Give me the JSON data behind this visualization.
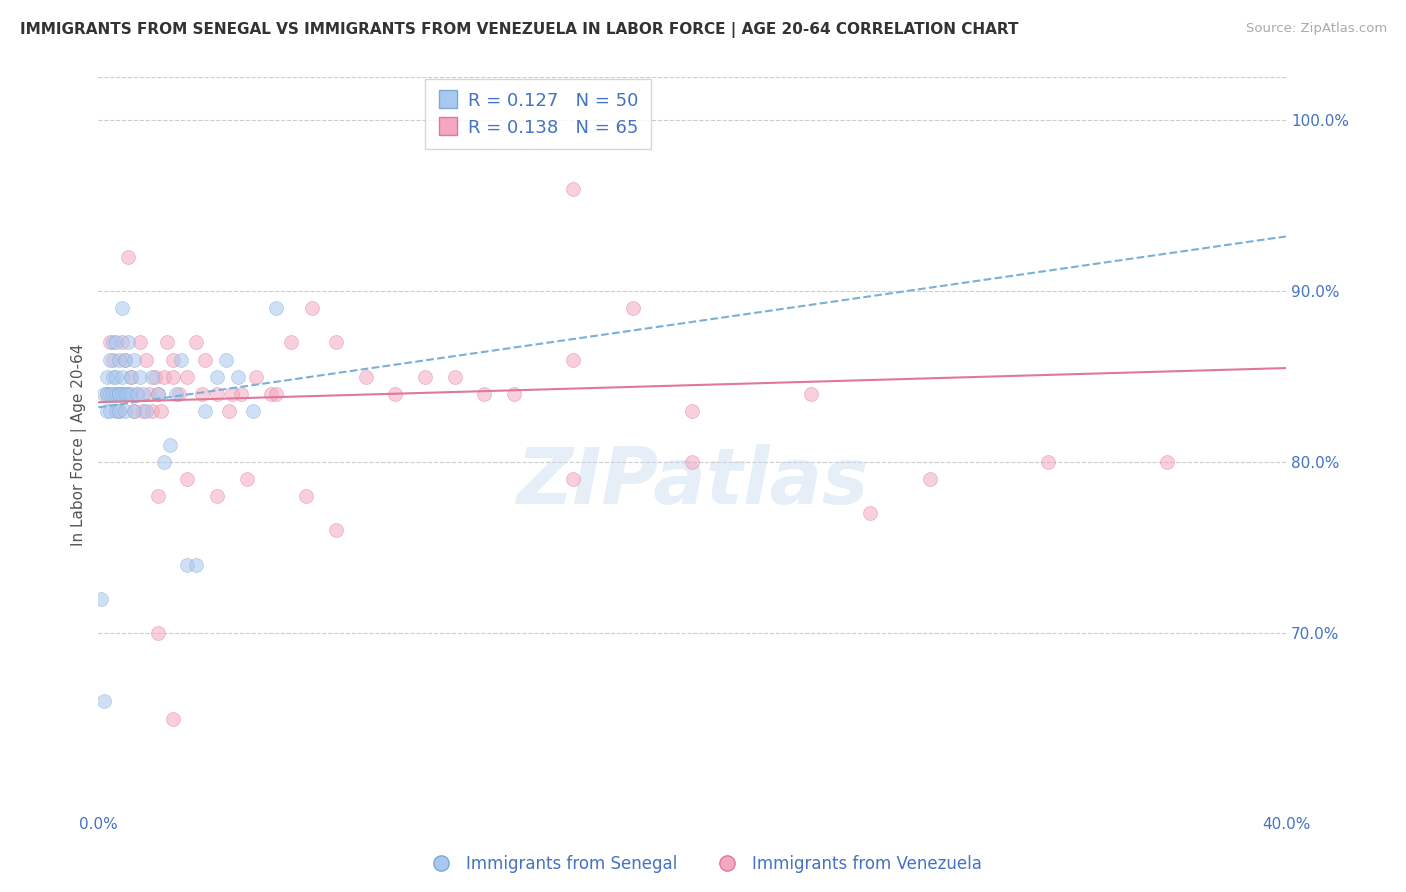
{
  "title": "IMMIGRANTS FROM SENEGAL VS IMMIGRANTS FROM VENEZUELA IN LABOR FORCE | AGE 20-64 CORRELATION CHART",
  "source": "Source: ZipAtlas.com",
  "ylabel": "In Labor Force | Age 20-64",
  "xlim": [
    0.0,
    0.4
  ],
  "ylim": [
    0.595,
    1.025
  ],
  "yticks_right": [
    0.7,
    0.8,
    0.9,
    1.0
  ],
  "ytick_labels_right": [
    "70.0%",
    "80.0%",
    "90.0%",
    "100.0%"
  ],
  "xticks": [
    0.0,
    0.05,
    0.1,
    0.15,
    0.2,
    0.25,
    0.3,
    0.35,
    0.4
  ],
  "xtick_labels": [
    "0.0%",
    "",
    "",
    "",
    "",
    "",
    "",
    "",
    "40.0%"
  ],
  "legend_entries": [
    {
      "label": "Immigrants from Senegal",
      "R": "0.127",
      "N": "50"
    },
    {
      "label": "Immigrants from Venezuela",
      "R": "0.138",
      "N": "65"
    }
  ],
  "watermark": "ZIPatlas",
  "background_color": "#ffffff",
  "grid_color": "#cccccc",
  "axis_color": "#4472c4",
  "senegal_x": [
    0.001,
    0.002,
    0.002,
    0.003,
    0.003,
    0.003,
    0.004,
    0.004,
    0.004,
    0.005,
    0.005,
    0.005,
    0.006,
    0.006,
    0.006,
    0.006,
    0.007,
    0.007,
    0.007,
    0.007,
    0.008,
    0.008,
    0.008,
    0.009,
    0.009,
    0.009,
    0.01,
    0.01,
    0.011,
    0.011,
    0.012,
    0.012,
    0.013,
    0.014,
    0.015,
    0.016,
    0.018,
    0.02,
    0.022,
    0.024,
    0.026,
    0.028,
    0.03,
    0.033,
    0.036,
    0.04,
    0.043,
    0.047,
    0.052,
    0.06
  ],
  "senegal_y": [
    0.72,
    0.84,
    0.66,
    0.84,
    0.83,
    0.85,
    0.86,
    0.84,
    0.83,
    0.85,
    0.84,
    0.87,
    0.85,
    0.84,
    0.83,
    0.87,
    0.84,
    0.86,
    0.84,
    0.83,
    0.89,
    0.84,
    0.85,
    0.86,
    0.84,
    0.83,
    0.84,
    0.87,
    0.84,
    0.85,
    0.86,
    0.83,
    0.84,
    0.85,
    0.84,
    0.83,
    0.85,
    0.84,
    0.8,
    0.81,
    0.84,
    0.86,
    0.74,
    0.74,
    0.83,
    0.85,
    0.86,
    0.85,
    0.83,
    0.89
  ],
  "venezuela_x": [
    0.003,
    0.004,
    0.005,
    0.006,
    0.007,
    0.008,
    0.008,
    0.009,
    0.01,
    0.01,
    0.011,
    0.012,
    0.013,
    0.014,
    0.015,
    0.016,
    0.017,
    0.018,
    0.019,
    0.02,
    0.021,
    0.022,
    0.023,
    0.025,
    0.027,
    0.03,
    0.033,
    0.036,
    0.04,
    0.044,
    0.048,
    0.053,
    0.058,
    0.065,
    0.072,
    0.08,
    0.09,
    0.1,
    0.11,
    0.12,
    0.14,
    0.16,
    0.18,
    0.02,
    0.025,
    0.03,
    0.035,
    0.04,
    0.045,
    0.05,
    0.06,
    0.07,
    0.08,
    0.13,
    0.16,
    0.2,
    0.24,
    0.28,
    0.32,
    0.36,
    0.02,
    0.025,
    0.16,
    0.2,
    0.26
  ],
  "venezuela_y": [
    0.84,
    0.87,
    0.86,
    0.84,
    0.83,
    0.87,
    0.84,
    0.86,
    0.84,
    0.92,
    0.85,
    0.83,
    0.84,
    0.87,
    0.83,
    0.86,
    0.84,
    0.83,
    0.85,
    0.84,
    0.83,
    0.85,
    0.87,
    0.86,
    0.84,
    0.85,
    0.87,
    0.86,
    0.84,
    0.83,
    0.84,
    0.85,
    0.84,
    0.87,
    0.89,
    0.87,
    0.85,
    0.84,
    0.85,
    0.85,
    0.84,
    0.86,
    0.89,
    0.78,
    0.85,
    0.79,
    0.84,
    0.78,
    0.84,
    0.79,
    0.84,
    0.78,
    0.76,
    0.84,
    0.79,
    0.8,
    0.84,
    0.79,
    0.8,
    0.8,
    0.7,
    0.65,
    0.96,
    0.83,
    0.77
  ],
  "senegal_trend_x": [
    0.0,
    0.4
  ],
  "senegal_trend_y": [
    0.832,
    0.932
  ],
  "venezuela_trend_x": [
    0.0,
    0.4
  ],
  "venezuela_trend_y": [
    0.835,
    0.855
  ],
  "senegal_color": "#a8c8f0",
  "senegal_edge_color": "#7aaad4",
  "venezuela_color": "#f4a8c0",
  "venezuela_edge_color": "#e07898",
  "senegal_line_color": "#7ab0d8",
  "venezuela_line_color": "#e07898",
  "marker_size": 100,
  "marker_alpha": 0.55
}
